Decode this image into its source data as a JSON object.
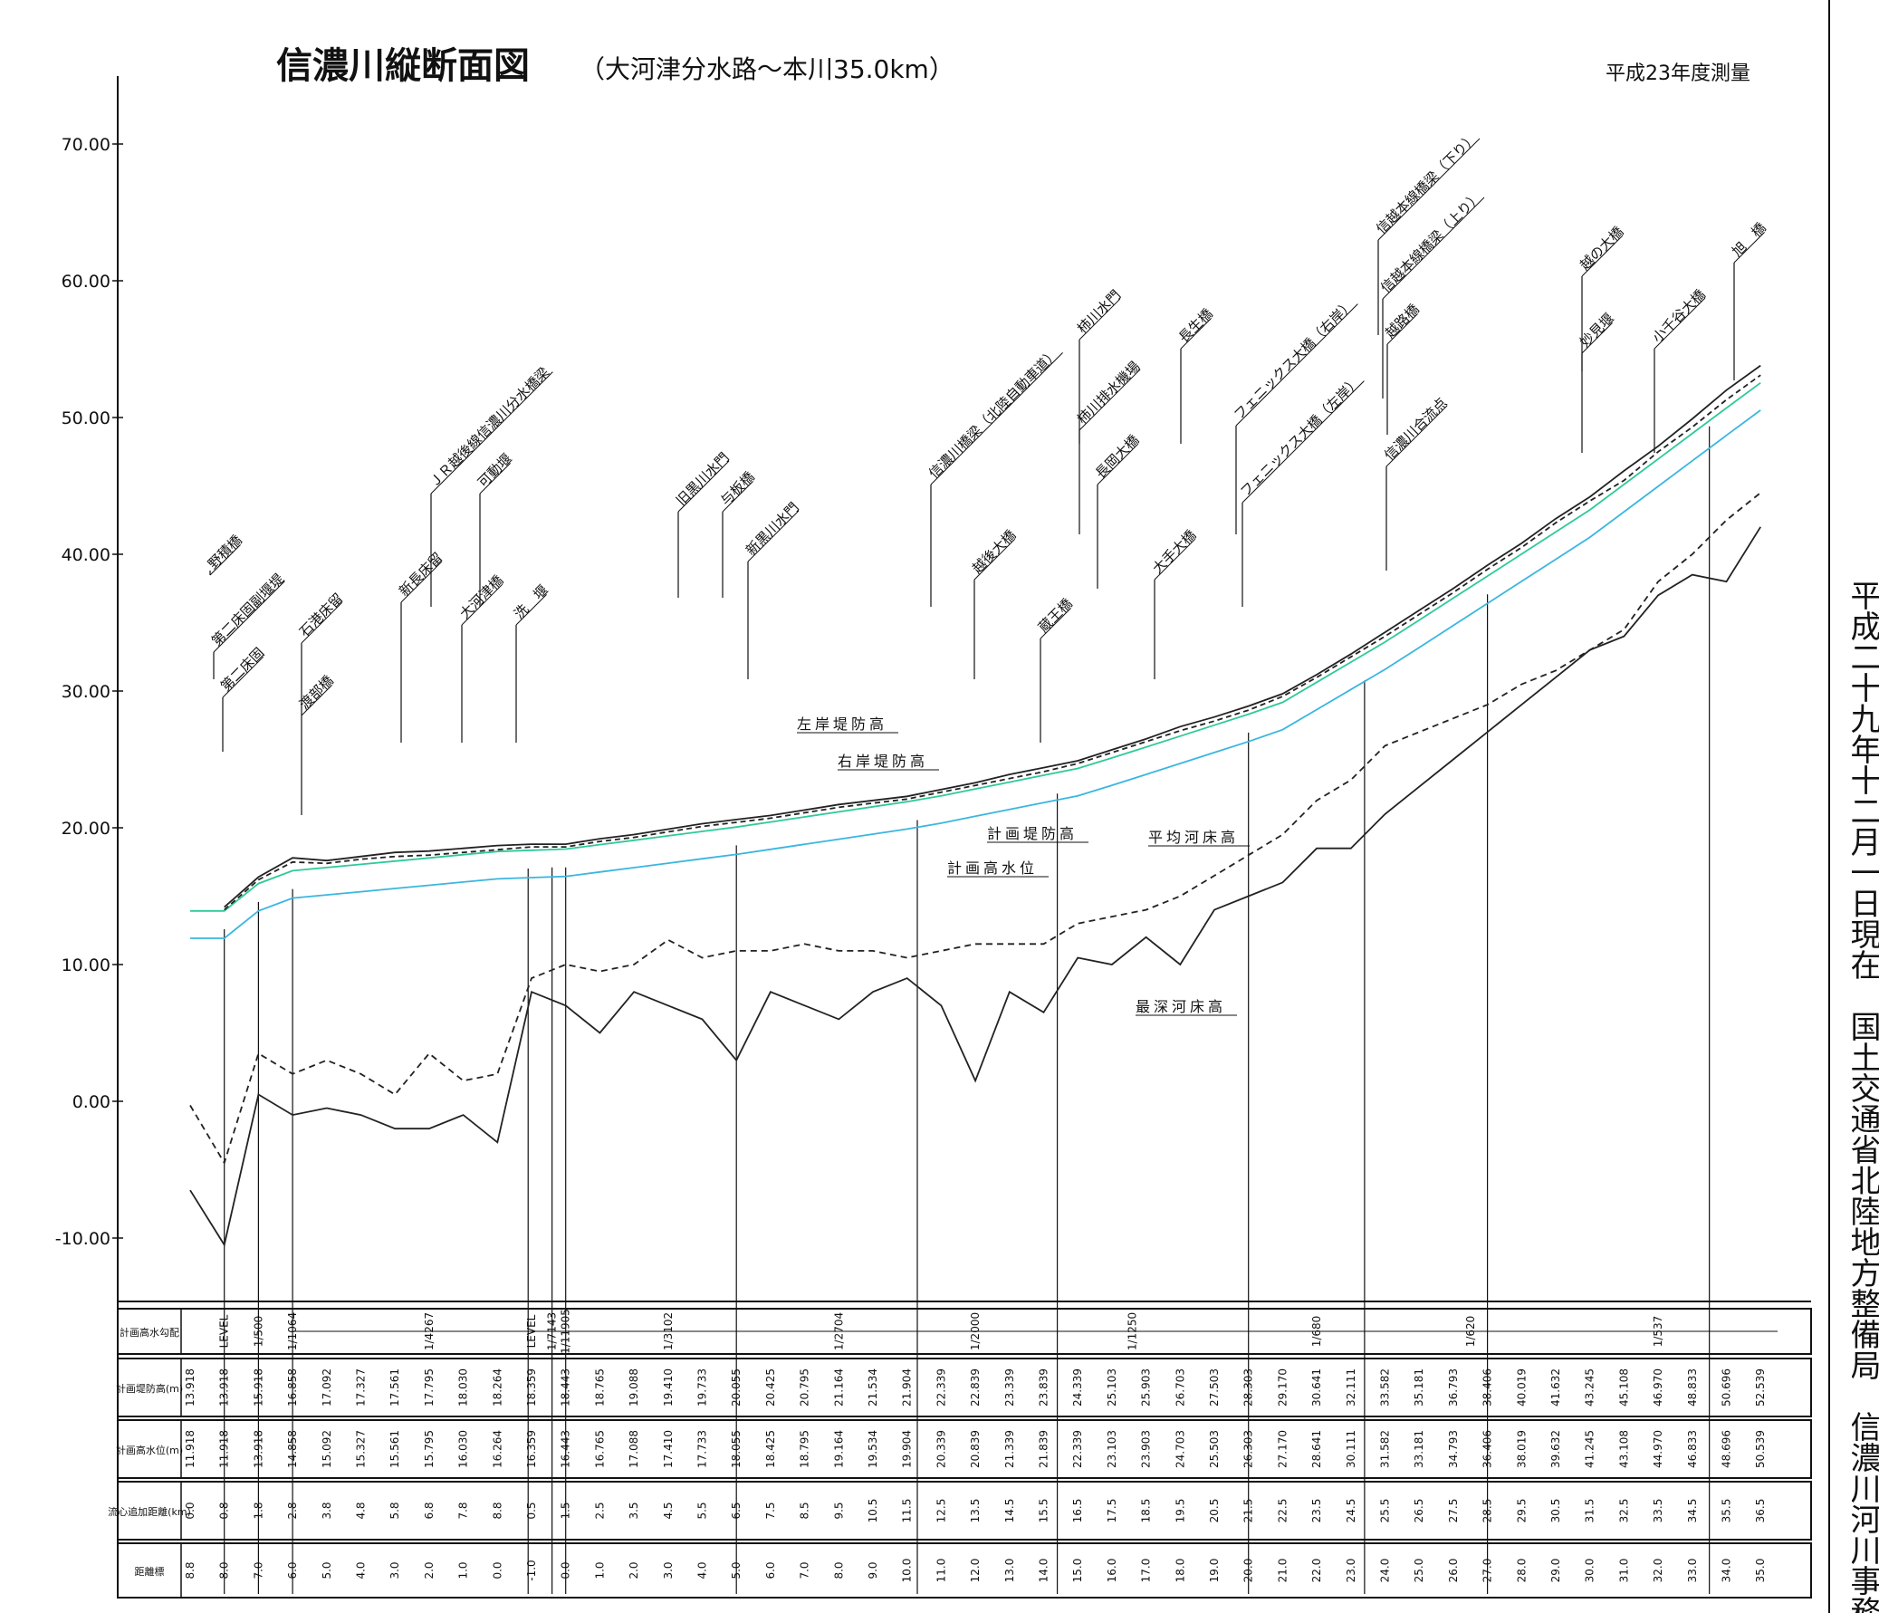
{
  "chart_data": {
    "type": "line",
    "title": "信濃川縦断面図",
    "subtitle": "（大河津分水路～本川35.0km）",
    "survey_note": "平成23年度測量",
    "ylim": [
      -12,
      75
    ],
    "y_ticks": [
      "70.00",
      "60.00",
      "50.00",
      "40.00",
      "30.00",
      "20.00",
      "10.00",
      "0.00",
      "-10.00"
    ],
    "y_tick_values": [
      70,
      60,
      50,
      40,
      30,
      20,
      10,
      0,
      -10
    ],
    "x": [
      8.8,
      8.0,
      7.0,
      6.0,
      5.0,
      4.0,
      3.0,
      2.0,
      1.0,
      0.0,
      -1.0,
      0.0,
      1.0,
      2.0,
      3.0,
      4.0,
      5.0,
      6.0,
      7.0,
      8.0,
      9.0,
      10.0,
      11.0,
      12.0,
      13.0,
      14.0,
      15.0,
      16.0,
      17.0,
      18.0,
      19.0,
      20.0,
      21.0,
      22.0,
      23.0,
      24.0,
      25.0,
      26.0,
      27.0,
      28.0,
      29.0,
      30.0,
      31.0,
      32.0,
      33.0,
      34.0,
      35.0
    ],
    "series": [
      {
        "name": "計画堤防高",
        "color": "#2ec99a",
        "values": [
          13.918,
          13.918,
          15.918,
          16.858,
          17.092,
          17.327,
          17.561,
          17.795,
          18.03,
          18.264,
          18.359,
          18.443,
          18.765,
          19.088,
          19.41,
          19.733,
          20.055,
          20.425,
          20.795,
          21.164,
          21.534,
          21.904,
          22.339,
          22.839,
          23.339,
          23.839,
          24.339,
          25.103,
          25.903,
          26.703,
          27.503,
          28.303,
          29.17,
          30.641,
          32.111,
          33.582,
          35.181,
          36.793,
          38.406,
          40.019,
          41.632,
          43.245,
          45.108,
          46.97,
          48.833,
          50.696,
          52.539
        ]
      },
      {
        "name": "計画高水位",
        "color": "#3ab6e0",
        "values": [
          11.918,
          11.918,
          13.918,
          14.858,
          15.092,
          15.327,
          15.561,
          15.795,
          16.03,
          16.264,
          16.359,
          16.443,
          16.765,
          17.088,
          17.41,
          17.733,
          18.055,
          18.425,
          18.795,
          19.164,
          19.534,
          19.904,
          20.339,
          20.839,
          21.339,
          21.839,
          22.339,
          23.103,
          23.903,
          24.703,
          25.503,
          26.303,
          27.17,
          28.641,
          30.111,
          31.582,
          33.181,
          34.793,
          36.406,
          38.019,
          39.632,
          41.245,
          43.108,
          44.97,
          46.833,
          48.696,
          50.539
        ]
      },
      {
        "name": "左岸堤防高",
        "color": "#222222",
        "values": [
          null,
          14.2,
          16.4,
          17.8,
          17.6,
          17.9,
          18.2,
          18.3,
          18.5,
          18.7,
          18.8,
          18.8,
          19.2,
          19.5,
          19.9,
          20.3,
          20.6,
          20.9,
          21.3,
          21.7,
          22.0,
          22.3,
          22.8,
          23.3,
          23.9,
          24.4,
          24.9,
          25.7,
          26.5,
          27.4,
          28.1,
          28.9,
          29.8,
          31.2,
          32.7,
          34.3,
          35.9,
          37.5,
          39.2,
          40.8,
          42.6,
          44.2,
          46.1,
          47.9,
          49.9,
          52.0,
          53.8
        ]
      },
      {
        "name": "右岸堤防高",
        "color": "#222222",
        "values": [
          null,
          14.0,
          16.2,
          17.5,
          17.4,
          17.7,
          17.9,
          18.0,
          18.2,
          18.4,
          18.6,
          18.6,
          19.0,
          19.3,
          19.7,
          20.1,
          20.4,
          20.7,
          21.1,
          21.5,
          21.8,
          22.1,
          22.6,
          23.1,
          23.6,
          24.1,
          24.7,
          25.5,
          26.3,
          27.1,
          27.8,
          28.6,
          29.6,
          31.0,
          32.5,
          34.0,
          35.6,
          37.2,
          38.9,
          40.5,
          42.3,
          43.9,
          45.4,
          47.5,
          49.3,
          51.3,
          53.1
        ]
      },
      {
        "name": "平均河床高",
        "color": "#222222",
        "values": [
          -0.3,
          -4.5,
          3.5,
          2.0,
          3.0,
          2.0,
          0.5,
          3.5,
          1.5,
          2.0,
          9.0,
          10.0,
          9.5,
          10.0,
          11.8,
          10.5,
          11.0,
          11.0,
          11.5,
          11.0,
          11.0,
          10.5,
          11.0,
          11.5,
          11.5,
          11.5,
          13.0,
          13.5,
          14.0,
          15.0,
          16.5,
          18.0,
          19.5,
          22.0,
          23.5,
          26.0,
          27.0,
          28.0,
          29.0,
          30.5,
          31.5,
          33.0,
          34.5,
          38.0,
          40.0,
          42.5,
          44.5
        ]
      },
      {
        "name": "最深河床高",
        "color": "#222222",
        "values": [
          -6.5,
          -10.5,
          0.5,
          -1.0,
          -0.5,
          -1.0,
          -2.0,
          -2.0,
          -1.0,
          -3.0,
          8.0,
          7.0,
          5.0,
          8.0,
          7.0,
          6.0,
          3.0,
          8.0,
          7.0,
          6.0,
          8.0,
          9.0,
          7.0,
          1.5,
          8.0,
          6.5,
          10.5,
          10.0,
          12.0,
          10.0,
          14.0,
          15.0,
          16.0,
          18.5,
          18.5,
          21.0,
          23.0,
          25.0,
          27.0,
          29.0,
          31.0,
          33.0,
          34.0,
          37.0,
          38.5,
          38.0,
          42.0
        ]
      }
    ],
    "annotations": [
      "左岸堤防高",
      "右岸堤防高",
      "計画堤防高",
      "計画高水位",
      "平均河床高",
      "最深河床高"
    ],
    "bridges": [
      "野積橋",
      "第二床固副堰堤",
      "第二床固",
      "石港床留",
      "渡部橋",
      "新長床留",
      "ＪＲ越後線信濃川分水橋梁",
      "大河津橋",
      "可動堰",
      "洗　堰",
      "旧黒川水門",
      "与板橋",
      "新黒川水門",
      "信濃川橋梁（北陸自動車道）",
      "越後大橋",
      "蔵王橋",
      "柿川水門",
      "柿川排水機場",
      "長岡大橋",
      "長生橋",
      "大手大橋",
      "フェニックス大橋（右岸）",
      "フェニックス大橋（左岸）",
      "信越本線橋梁（下り）",
      "信越本線橋梁（上り）",
      "越路橋",
      "妙見堰",
      "越の大橋",
      "小千谷大橋",
      "旭　橋",
      "信濃川合流点"
    ],
    "table": {
      "row_labels": [
        "計画高水勾配",
        "計画堤防高(m)",
        "計画高水位(m)",
        "流心追加距離(km)",
        "距離標"
      ],
      "gradients": [
        "LEVEL",
        "1/500",
        "1/1064",
        "1/4267",
        "LEVEL",
        "1/7143",
        "1/11905",
        "1/3102",
        "1/2704",
        "1/2000",
        "1/1250",
        "1/680",
        "1/620",
        "1/537"
      ],
      "plan_levee": [
        "13.918",
        "13.918",
        "15.918",
        "16.858",
        "17.092",
        "17.327",
        "17.561",
        "17.795",
        "18.030",
        "18.264",
        "18.359",
        "18.443",
        "18.765",
        "19.088",
        "19.410",
        "19.733",
        "20.055",
        "20.425",
        "20.795",
        "21.164",
        "21.534",
        "21.904",
        "22.339",
        "22.839",
        "23.339",
        "23.839",
        "24.339",
        "25.103",
        "25.903",
        "26.703",
        "27.503",
        "28.303",
        "29.170",
        "30.641",
        "32.111",
        "33.582",
        "35.181",
        "36.793",
        "38.406",
        "40.019",
        "41.632",
        "43.245",
        "45.108",
        "46.970",
        "48.833",
        "50.696",
        "52.539"
      ],
      "plan_hwl": [
        "11.918",
        "11.918",
        "13.918",
        "14.858",
        "15.092",
        "15.327",
        "15.561",
        "15.795",
        "16.030",
        "16.264",
        "16.359",
        "16.443",
        "16.765",
        "17.088",
        "17.410",
        "17.733",
        "18.055",
        "18.425",
        "18.795",
        "19.164",
        "19.534",
        "19.904",
        "20.339",
        "20.839",
        "21.339",
        "21.839",
        "22.339",
        "23.103",
        "23.903",
        "24.703",
        "25.503",
        "26.303",
        "27.170",
        "28.641",
        "30.111",
        "31.582",
        "33.181",
        "34.793",
        "36.406",
        "38.019",
        "39.632",
        "41.245",
        "43.108",
        "44.970",
        "46.833",
        "48.696",
        "50.539"
      ],
      "added_distance": [
        "0.0",
        "0.8",
        "1.8",
        "2.8",
        "3.8",
        "4.8",
        "5.8",
        "6.8",
        "7.8",
        "8.8",
        "0.5",
        "1.5",
        "2.5",
        "3.5",
        "4.5",
        "5.5",
        "6.5",
        "7.5",
        "8.5",
        "9.5",
        "10.5",
        "11.5",
        "12.5",
        "13.5",
        "14.5",
        "15.5",
        "16.5",
        "17.5",
        "18.5",
        "19.5",
        "20.5",
        "21.5",
        "22.5",
        "23.5",
        "24.5",
        "25.5",
        "26.5",
        "27.5",
        "28.5",
        "29.5",
        "30.5",
        "31.5",
        "32.5",
        "33.5",
        "34.5",
        "35.5",
        "36.5"
      ],
      "distance_marker": [
        "8.8",
        "8.0",
        "7.0",
        "6.0",
        "5.0",
        "4.0",
        "3.0",
        "2.0",
        "1.0",
        "0.0",
        "-1.0",
        "0.0",
        "1.0",
        "2.0",
        "3.0",
        "4.0",
        "5.0",
        "6.0",
        "7.0",
        "8.0",
        "9.0",
        "10.0",
        "11.0",
        "12.0",
        "13.0",
        "14.0",
        "15.0",
        "16.0",
        "17.0",
        "18.0",
        "19.0",
        "20.0",
        "21.0",
        "22.0",
        "23.0",
        "24.0",
        "25.0",
        "26.0",
        "27.0",
        "28.0",
        "29.0",
        "30.0",
        "31.0",
        "32.0",
        "33.0",
        "34.0",
        "35.0"
      ]
    }
  },
  "side_text": "平成二十九年十二月一日現在　国土交通省北陸地方整備局　信濃川河川事務所"
}
